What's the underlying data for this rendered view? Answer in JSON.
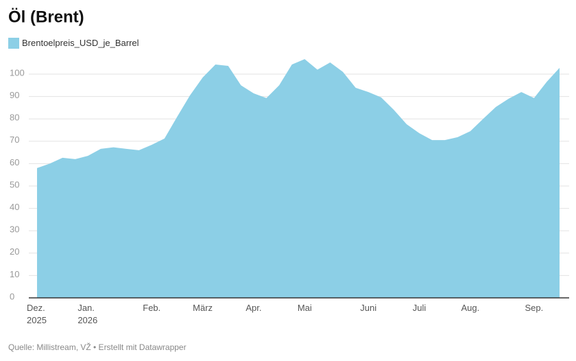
{
  "chart_data": {
    "type": "area",
    "title": "Öl (Brent)",
    "source": "Quelle: Millistream, VŽ • Erstellt mit Datawrapper",
    "categories": [
      "Dez.\n2025",
      null,
      null,
      null,
      "Jan.\n2026",
      null,
      null,
      null,
      null,
      "Feb.",
      null,
      null,
      null,
      "März",
      null,
      null,
      null,
      "Apr.",
      null,
      null,
      null,
      "Mai",
      null,
      null,
      null,
      null,
      "Juni",
      null,
      null,
      null,
      "Juli",
      null,
      null,
      null,
      "Aug.",
      null,
      null,
      null,
      null,
      "Sep.",
      null,
      null
    ],
    "series": [
      {
        "name": "Brentoelpreis_USD_je_Barrel",
        "color": "#8ccfe6",
        "values": [
          58,
          60,
          62.6,
          62,
          63.5,
          66.6,
          67.3,
          66.6,
          66,
          68.4,
          71.2,
          81,
          90.5,
          98.5,
          104.3,
          103.7,
          95,
          91.4,
          89.3,
          95,
          104.3,
          106.7,
          102,
          105.2,
          101,
          93.9,
          92,
          89.6,
          84,
          77.6,
          73.6,
          70.5,
          70.5,
          71.8,
          74.5,
          80,
          85.3,
          89,
          92,
          89.3,
          96.6,
          102.8
        ]
      }
    ],
    "ylim": [
      0,
      110
    ],
    "yticks": [
      0,
      10,
      20,
      30,
      40,
      50,
      60,
      70,
      80,
      90,
      100
    ],
    "grid": true,
    "legend": "top-left"
  }
}
